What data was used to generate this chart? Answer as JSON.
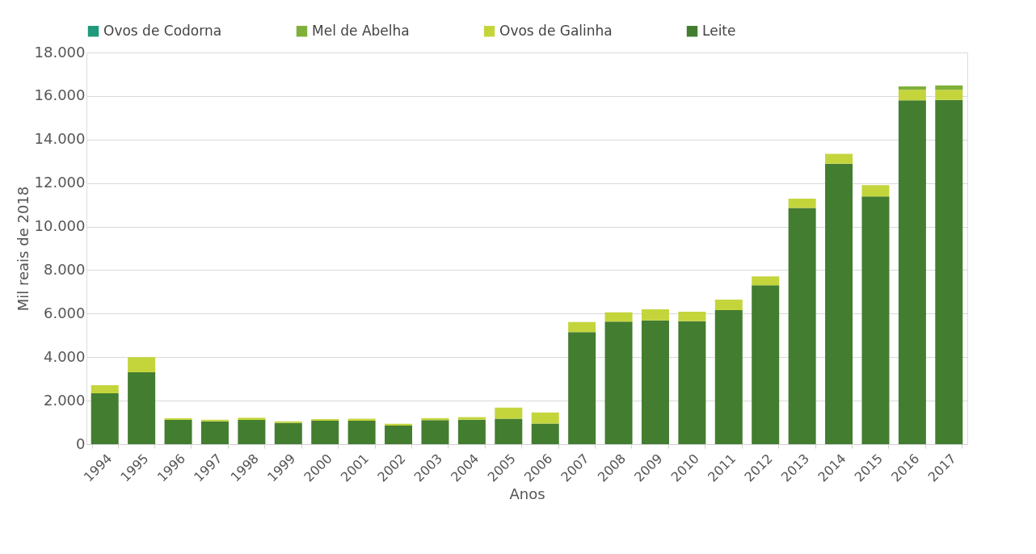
{
  "chart_data": {
    "type": "bar",
    "stacked": true,
    "xlabel": "Anos",
    "ylabel": "Mil reais de 2018",
    "categories": [
      "1994",
      "1995",
      "1996",
      "1997",
      "1998",
      "1999",
      "2000",
      "2001",
      "2002",
      "2003",
      "2004",
      "2005",
      "2006",
      "2007",
      "2008",
      "2009",
      "2010",
      "2011",
      "2012",
      "2013",
      "2014",
      "2015",
      "2016",
      "2017"
    ],
    "series": [
      {
        "name": "Leite",
        "color": "#437d30",
        "values": [
          2340,
          3300,
          1110,
          1050,
          1110,
          970,
          1080,
          1080,
          850,
          1100,
          1120,
          1170,
          950,
          5150,
          5630,
          5690,
          5650,
          6160,
          7300,
          10860,
          12890,
          11380,
          15800,
          15820
        ]
      },
      {
        "name": "Ovos de Galinha",
        "color": "#c4d53c",
        "values": [
          370,
          700,
          80,
          70,
          110,
          80,
          70,
          90,
          90,
          100,
          120,
          510,
          510,
          460,
          430,
          510,
          440,
          480,
          410,
          420,
          450,
          520,
          480,
          460
        ]
      },
      {
        "name": "Mel de Abelha",
        "color": "#7fb03a",
        "values": [
          0,
          0,
          0,
          0,
          0,
          0,
          0,
          0,
          0,
          0,
          0,
          0,
          0,
          0,
          0,
          0,
          0,
          0,
          0,
          0,
          0,
          0,
          160,
          210
        ]
      },
      {
        "name": "Ovos de Codorna",
        "color": "#1f9a7a",
        "values": [
          0,
          0,
          0,
          0,
          0,
          0,
          0,
          0,
          0,
          0,
          0,
          0,
          0,
          0,
          0,
          0,
          0,
          0,
          0,
          0,
          0,
          0,
          0,
          0
        ]
      }
    ],
    "ylim": [
      0,
      18000
    ],
    "yticks": [
      {
        "value": 0,
        "label": "0"
      },
      {
        "value": 2000,
        "label": "2.000"
      },
      {
        "value": 4000,
        "label": "4.000"
      },
      {
        "value": 6000,
        "label": "6.000"
      },
      {
        "value": 8000,
        "label": "8.000"
      },
      {
        "value": 10000,
        "label": "10.000"
      },
      {
        "value": 12000,
        "label": "12.000"
      },
      {
        "value": 14000,
        "label": "14.000"
      },
      {
        "value": 16000,
        "label": "16.000"
      },
      {
        "value": 18000,
        "label": "18.000"
      }
    ],
    "grid": "y",
    "legend": "top"
  }
}
